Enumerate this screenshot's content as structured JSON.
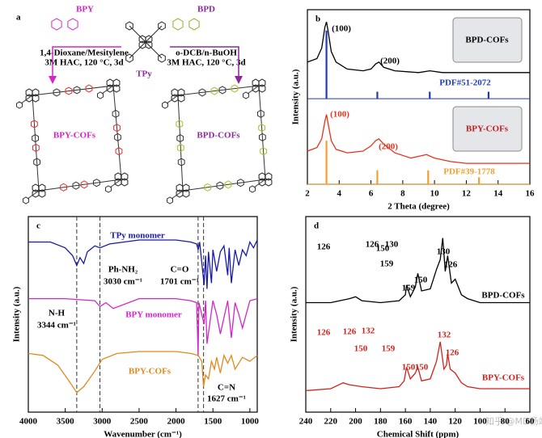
{
  "scheme": {
    "label": "a",
    "bpy": "BPY",
    "bpd": "BPD",
    "tpy": "TPy",
    "left_conditions": [
      "1,4-Dioxane/Mesitylene",
      "3M HAC, 120 °C, 3d"
    ],
    "right_conditions": [
      "o-DCB/n-BuOH",
      "3M HAC, 120 °C, 3d"
    ],
    "left_product": "BPY-COFs",
    "right_product": "BPD-COFs"
  },
  "watermark": "知乎 @MD杨站长",
  "chart_data": [
    {
      "type": "line",
      "panel": "b",
      "xlabel": "2 Theta (degree)",
      "ylabel": "Intensity (a.u.)",
      "xlim": [
        2,
        16
      ],
      "xticks": [
        2,
        4,
        6,
        8,
        10,
        12,
        14,
        16
      ],
      "ylim": [
        0,
        10
      ],
      "series": [
        {
          "color": "#000000",
          "x": [
            2,
            2.6,
            2.9,
            3.1,
            3.2,
            3.3,
            3.5,
            3.8,
            4.5,
            5.5,
            6.0,
            6.3,
            6.5,
            6.8,
            7.5,
            9,
            9.7,
            10.5,
            12,
            14,
            16
          ],
          "values": [
            7.0,
            7.2,
            7.8,
            9.0,
            9.3,
            8.8,
            7.6,
            7.0,
            6.6,
            6.5,
            6.6,
            6.9,
            7.0,
            6.7,
            6.5,
            6.4,
            6.5,
            6.4,
            6.4,
            6.4,
            6.4
          ]
        },
        {
          "color": "#e8321c",
          "x": [
            2,
            2.6,
            2.9,
            3.1,
            3.2,
            3.3,
            3.5,
            3.8,
            4.5,
            5.5,
            6.0,
            6.3,
            6.5,
            6.8,
            7.5,
            8.5,
            9.5,
            10,
            11,
            12,
            14,
            16
          ],
          "values": [
            1.9,
            2.1,
            2.6,
            3.6,
            4.0,
            3.5,
            2.5,
            2.0,
            1.8,
            1.9,
            2.2,
            2.5,
            2.6,
            2.3,
            1.8,
            1.5,
            1.7,
            1.5,
            1.3,
            1.2,
            1.2,
            1.2
          ]
        }
      ],
      "sticks": [
        {
          "color": "#1f3bb3",
          "base": 4.9,
          "x": [
            3.2,
            6.4,
            9.7,
            13.4
          ],
          "values": [
            8.8,
            5.3,
            5.3,
            5.3
          ]
        },
        {
          "color": "#f0a030",
          "base": 0,
          "x": [
            3.2,
            6.4,
            9.6,
            12.8
          ],
          "values": [
            2.5,
            0.8,
            0.8,
            0.4
          ]
        }
      ],
      "insets": [
        "BPD-COFs",
        "BPY-COFs"
      ],
      "annotations": [
        {
          "text": "(100)",
          "color": "#000000"
        },
        {
          "text": "(200)",
          "color": "#000000"
        },
        {
          "text": "PDF#51-2072",
          "color": "#1f3bb3"
        },
        {
          "text": "(100)",
          "color": "#e8321c"
        },
        {
          "text": "(200)",
          "color": "#e8321c"
        },
        {
          "text": "PDF#39-1778",
          "color": "#f0a030"
        }
      ]
    },
    {
      "type": "line",
      "panel": "c",
      "xlabel": "Wavenumber (cm⁻¹)",
      "ylabel": "Intensity (a.u.)",
      "xlim": [
        4000,
        900
      ],
      "xticks": [
        4000,
        3500,
        3000,
        2500,
        2000,
        1500,
        1000
      ],
      "ylim": [
        0,
        10
      ],
      "reference_lines": [
        3344,
        3030,
        1701,
        1627
      ],
      "series": [
        {
          "color": "#1a1aa8",
          "x": [
            4000,
            3700,
            3500,
            3400,
            3344,
            3300,
            3250,
            3200,
            3100,
            3030,
            2900,
            2500,
            2000,
            1800,
            1720,
            1700,
            1680,
            1620,
            1600,
            1580,
            1560,
            1520,
            1500,
            1450,
            1400,
            1350,
            1300,
            1280,
            1250,
            1200,
            1150,
            1100,
            1050,
            1000,
            950,
            900
          ],
          "values": [
            8.7,
            8.7,
            8.4,
            8.0,
            7.5,
            7.9,
            7.6,
            8.2,
            8.5,
            8.4,
            8.6,
            8.8,
            8.8,
            8.7,
            8.6,
            8.3,
            8.7,
            6.5,
            8.0,
            6.3,
            8.2,
            6.6,
            8.3,
            7.2,
            8.2,
            8.5,
            7.0,
            8.4,
            6.6,
            8.3,
            7.5,
            8.3,
            8.0,
            8.7,
            8.4,
            8.8
          ]
        },
        {
          "color": "#d426c8",
          "x": [
            4000,
            3500,
            3100,
            3030,
            2950,
            2850,
            2500,
            2000,
            1800,
            1720,
            1701,
            1690,
            1620,
            1600,
            1580,
            1500,
            1450,
            1400,
            1300,
            1250,
            1200,
            1150,
            1100,
            1000,
            900
          ],
          "values": [
            5.8,
            5.8,
            5.7,
            5.4,
            5.6,
            5.3,
            5.8,
            5.8,
            5.7,
            5.6,
            2.9,
            5.6,
            4.5,
            5.7,
            3.5,
            5.7,
            5.0,
            4.0,
            5.7,
            3.8,
            5.6,
            5.0,
            4.3,
            5.7,
            5.8
          ]
        },
        {
          "color": "#e08a1e",
          "x": [
            4000,
            3800,
            3600,
            3450,
            3344,
            3250,
            3100,
            3000,
            2800,
            2500,
            2000,
            1800,
            1700,
            1650,
            1627,
            1600,
            1560,
            1520,
            1480,
            1450,
            1400,
            1350,
            1300,
            1250,
            1200,
            1100,
            1000,
            900
          ],
          "values": [
            3.0,
            2.9,
            2.4,
            1.6,
            1.0,
            1.3,
            2.1,
            2.7,
            3.0,
            3.1,
            3.1,
            3.0,
            2.9,
            2.6,
            1.3,
            1.9,
            1.7,
            2.6,
            2.2,
            2.8,
            2.0,
            2.9,
            2.5,
            2.9,
            2.2,
            2.8,
            2.6,
            2.9
          ]
        }
      ],
      "annotations": [
        {
          "text": "TPy monomer",
          "color": "#1a1aa8"
        },
        {
          "text": "BPY monomer",
          "color": "#d426c8"
        },
        {
          "text": "BPY-COFs",
          "color": "#e08a1e"
        },
        {
          "text": "Ph-NH₂",
          "color": "#000000"
        },
        {
          "text": "3030 cm⁻¹",
          "color": "#000000"
        },
        {
          "text": "C=O",
          "color": "#000000"
        },
        {
          "text": "1701 cm⁻¹",
          "color": "#000000"
        },
        {
          "text": "N-H",
          "color": "#000000"
        },
        {
          "text": "3344 cm⁻¹",
          "color": "#000000"
        },
        {
          "text": "C=N",
          "color": "#000000"
        },
        {
          "text": "1627 cm⁻¹",
          "color": "#000000"
        }
      ]
    },
    {
      "type": "line",
      "panel": "d",
      "xlabel": "Chemical Shift (ppm)",
      "ylabel": "Intensity (a.u.)",
      "xlim": [
        240,
        60
      ],
      "xticks": [
        240,
        220,
        200,
        180,
        160,
        140,
        120,
        100,
        80,
        60
      ],
      "ylim": [
        0,
        10
      ],
      "series": [
        {
          "color": "#000000",
          "x": [
            240,
            220,
            205,
            200,
            195,
            180,
            165,
            160,
            159,
            156,
            152,
            150,
            147,
            140,
            135,
            132,
            130,
            128,
            126,
            123,
            120,
            115,
            110,
            100,
            80,
            60
          ],
          "values": [
            5.6,
            5.6,
            5.8,
            5.9,
            5.7,
            5.6,
            5.7,
            6.0,
            6.5,
            5.9,
            6.4,
            7.1,
            6.2,
            6.3,
            7.3,
            7.8,
            8.9,
            7.2,
            8.0,
            6.6,
            6.8,
            6.0,
            5.8,
            5.6,
            5.6,
            5.6
          ]
        },
        {
          "color": "#d0221c",
          "x": [
            240,
            220,
            210,
            205,
            195,
            180,
            165,
            161,
            159,
            156,
            152,
            150,
            147,
            140,
            135,
            132,
            129,
            127,
            126,
            124,
            120,
            115,
            110,
            100,
            80,
            60
          ],
          "values": [
            1.1,
            1.2,
            1.5,
            1.4,
            1.3,
            1.2,
            1.3,
            1.6,
            2.3,
            1.7,
            2.0,
            2.3,
            1.6,
            1.7,
            2.6,
            3.6,
            2.2,
            2.4,
            3.0,
            2.2,
            2.0,
            1.5,
            1.3,
            1.2,
            1.2,
            1.2
          ]
        }
      ],
      "annotations": [
        {
          "text": "159",
          "color": "#000000"
        },
        {
          "text": "150",
          "color": "#000000"
        },
        {
          "text": "130",
          "color": "#000000"
        },
        {
          "text": "126",
          "color": "#000000"
        },
        {
          "text": "BPD-COFs",
          "color": "#000000"
        },
        {
          "text": "150",
          "color": "#d0221c"
        },
        {
          "text": "150",
          "color": "#d0221c"
        },
        {
          "text": "132",
          "color": "#d0221c"
        },
        {
          "text": "126",
          "color": "#d0221c"
        },
        {
          "text": "BPY-COFs",
          "color": "#d0221c"
        },
        {
          "text": "126",
          "color": "#000000"
        },
        {
          "text": "126",
          "color": "#000000"
        },
        {
          "text": "150",
          "color": "#000000"
        },
        {
          "text": "130",
          "color": "#000000"
        },
        {
          "text": "159",
          "color": "#000000"
        },
        {
          "text": "126",
          "color": "#d0221c"
        },
        {
          "text": "126",
          "color": "#d0221c"
        },
        {
          "text": "132",
          "color": "#d0221c"
        },
        {
          "text": "150",
          "color": "#d0221c"
        },
        {
          "text": "159",
          "color": "#d0221c"
        }
      ]
    }
  ]
}
